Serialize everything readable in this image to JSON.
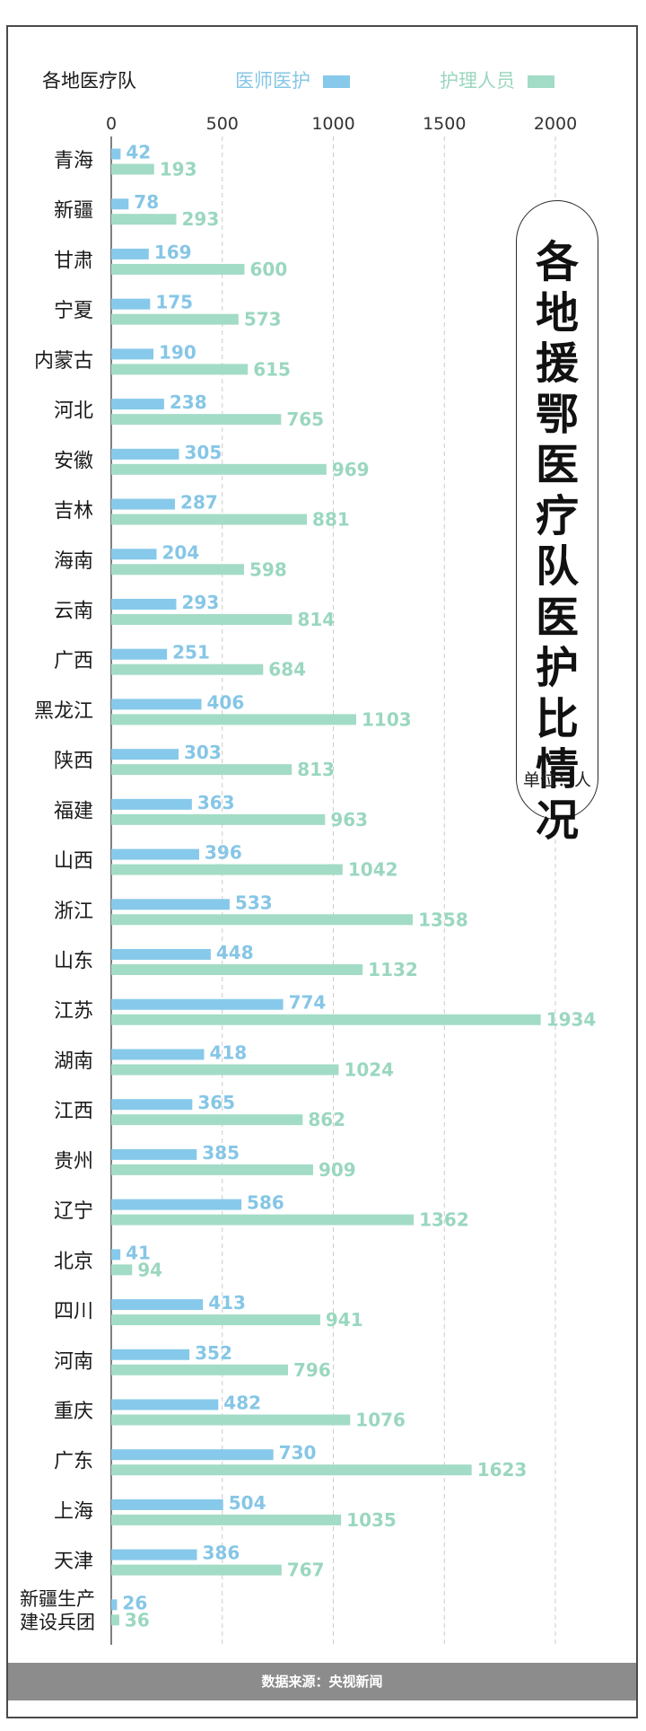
{
  "header": {
    "group_label": "各地医疗队",
    "legend_doctor": "医师医护",
    "legend_nurse": "护理人员"
  },
  "title": {
    "text": "各地援鄂医疗队医护比情况",
    "unit": "单位：人"
  },
  "footer": {
    "source": "数据来源：央视新闻"
  },
  "colors": {
    "doctor": "#87c9ea",
    "nurse": "#a3dcc6",
    "doctor_label": "#86c6e6",
    "nurse_label": "#9ad7bf",
    "grid": "#cccccc",
    "footer_bg": "#8c8c8c"
  },
  "chart_data": {
    "type": "bar",
    "orientation": "horizontal",
    "xlim": [
      0,
      2000
    ],
    "x_ticks": [
      "0",
      "500",
      "1000",
      "1500",
      "2000"
    ],
    "grid": "vertical-dashed",
    "legend_position": "top",
    "categories": [
      [
        "青海"
      ],
      [
        "新疆"
      ],
      [
        "甘肃"
      ],
      [
        "宁夏"
      ],
      [
        "内蒙古"
      ],
      [
        "河北"
      ],
      [
        "安徽"
      ],
      [
        "吉林"
      ],
      [
        "海南"
      ],
      [
        "云南"
      ],
      [
        "广西"
      ],
      [
        "黑龙江"
      ],
      [
        "陕西"
      ],
      [
        "福建"
      ],
      [
        "山西"
      ],
      [
        "浙江"
      ],
      [
        "山东"
      ],
      [
        "江苏"
      ],
      [
        "湖南"
      ],
      [
        "江西"
      ],
      [
        "贵州"
      ],
      [
        "辽宁"
      ],
      [
        "北京"
      ],
      [
        "四川"
      ],
      [
        "河南"
      ],
      [
        "重庆"
      ],
      [
        "广东"
      ],
      [
        "上海"
      ],
      [
        "天津"
      ],
      [
        "新疆生产",
        "建设兵团"
      ]
    ],
    "series": [
      {
        "name": "医师医护",
        "values": [
          42,
          78,
          169,
          175,
          190,
          238,
          305,
          287,
          204,
          293,
          251,
          406,
          303,
          363,
          396,
          533,
          448,
          774,
          418,
          365,
          385,
          586,
          41,
          413,
          352,
          482,
          730,
          504,
          386,
          26
        ]
      },
      {
        "name": "护理人员",
        "values": [
          193,
          293,
          600,
          573,
          615,
          765,
          969,
          881,
          598,
          814,
          684,
          1103,
          813,
          963,
          1042,
          1358,
          1132,
          1934,
          1024,
          862,
          909,
          1362,
          94,
          941,
          796,
          1076,
          1623,
          1035,
          767,
          36
        ]
      }
    ]
  }
}
